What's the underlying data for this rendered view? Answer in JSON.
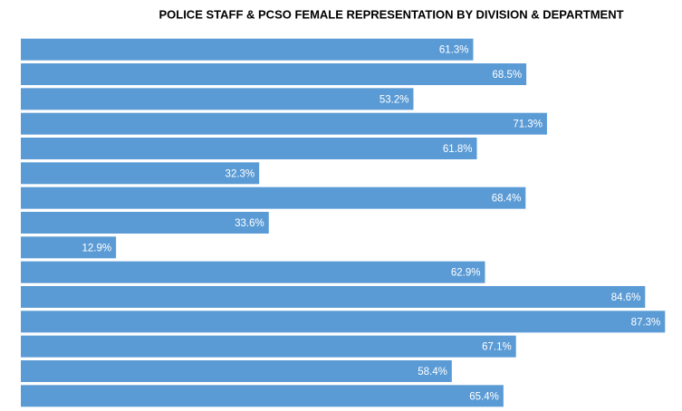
{
  "chart_data": {
    "type": "bar",
    "orientation": "horizontal",
    "title": "POLICE STAFF & PCSO FEMALE REPRESENTATION BY DIVISION & DEPARTMENT",
    "values": [
      61.3,
      68.5,
      53.2,
      71.3,
      61.8,
      32.3,
      68.4,
      33.6,
      12.9,
      62.9,
      84.6,
      87.3,
      67.1,
      58.4,
      65.4
    ],
    "value_labels": [
      "61.3%",
      "68.5%",
      "53.2%",
      "71.3%",
      "61.8%",
      "32.3%",
      "68.4%",
      "33.6%",
      "12.9%",
      "62.9%",
      "84.6%",
      "87.3%",
      "67.1%",
      "58.4%",
      "65.4%"
    ],
    "color": "#5b9bd5",
    "xlim": [
      0,
      88
    ]
  }
}
